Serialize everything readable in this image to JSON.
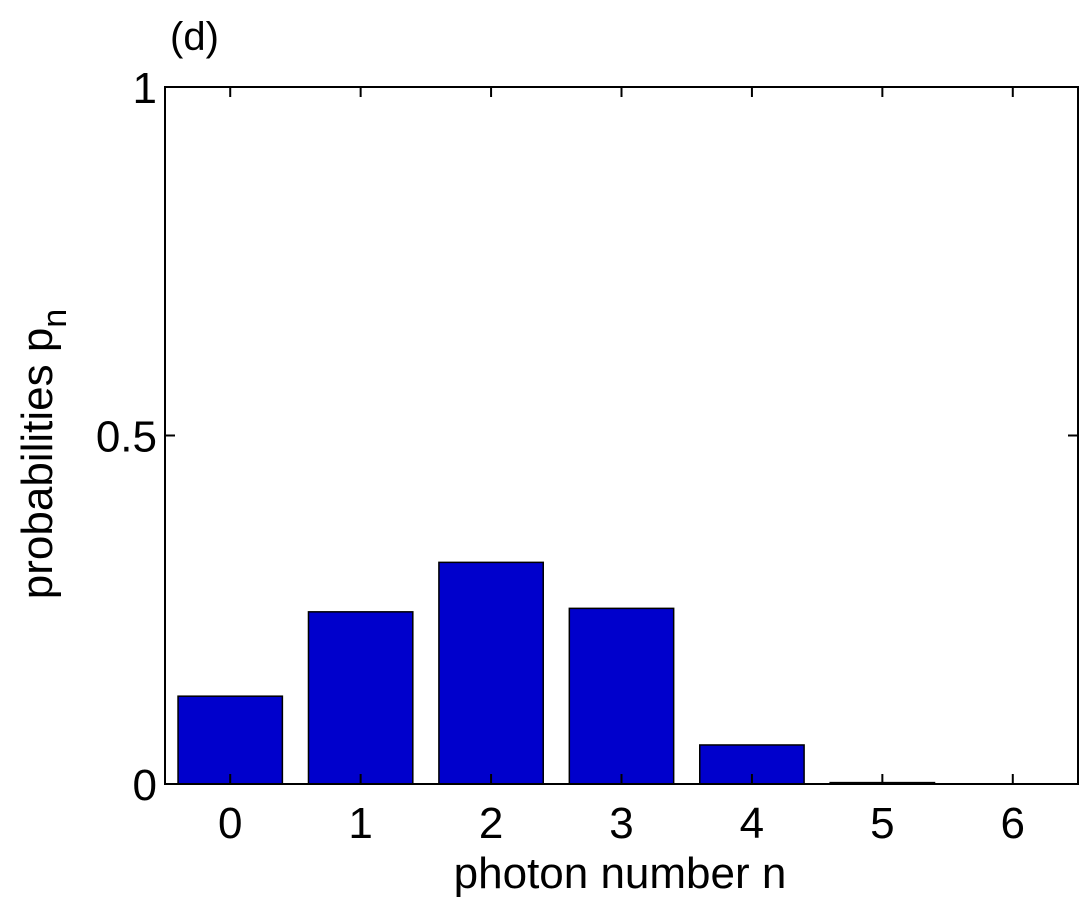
{
  "chart_data": {
    "type": "bar",
    "panel_label": "(d)",
    "title": "",
    "xlabel": "photon number n",
    "ylabel": "probabilities p",
    "ylabel_subscript": "n",
    "categories": [
      "0",
      "1",
      "2",
      "3",
      "4",
      "5",
      "6"
    ],
    "values": [
      0.126,
      0.247,
      0.318,
      0.252,
      0.056,
      0.002,
      0.0
    ],
    "ylim": [
      0,
      1
    ],
    "yticks": [
      0,
      0.5,
      1
    ],
    "ytick_labels": [
      "0",
      "0.5",
      "1"
    ],
    "grid": false,
    "bar_color": "#0000CC"
  }
}
